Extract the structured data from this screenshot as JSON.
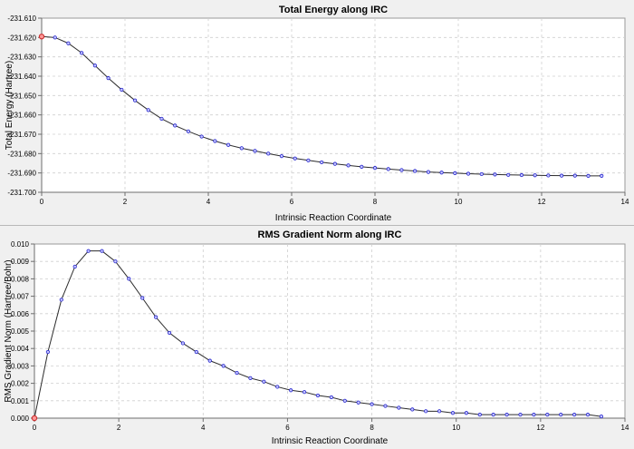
{
  "chart_data": [
    {
      "type": "line",
      "title": "Total Energy along IRC",
      "xlabel": "Intrinsic Reaction Coordinate",
      "ylabel": "Total Energy (Hartree)",
      "xlim": [
        0,
        14
      ],
      "ylim": [
        -231.7,
        -231.61
      ],
      "x_ticks": [
        0,
        2,
        4,
        6,
        8,
        10,
        12,
        14
      ],
      "x_tick_labels": [
        "0",
        "2",
        "4",
        "6",
        "8",
        "10",
        "12",
        "14"
      ],
      "y_ticks": [
        -231.61,
        -231.62,
        -231.63,
        -231.64,
        -231.65,
        -231.66,
        -231.67,
        -231.68,
        -231.69,
        -231.7
      ],
      "y_tick_labels": [
        "-231.610",
        "-231.620",
        "-231.630",
        "-231.640",
        "-231.650",
        "-231.660",
        "-231.670",
        "-231.680",
        "-231.690",
        "-231.700"
      ],
      "grid": true,
      "highlight_index": 0,
      "series": [
        {
          "x": [
            0,
            0.32,
            0.64,
            0.96,
            1.28,
            1.6,
            1.92,
            2.24,
            2.56,
            2.88,
            3.2,
            3.52,
            3.84,
            4.16,
            4.48,
            4.8,
            5.12,
            5.44,
            5.76,
            6.08,
            6.4,
            6.72,
            7.04,
            7.36,
            7.68,
            8.0,
            8.32,
            8.64,
            8.96,
            9.28,
            9.6,
            9.92,
            10.24,
            10.56,
            10.88,
            11.2,
            11.52,
            11.84,
            12.16,
            12.48,
            12.8,
            13.12,
            13.44
          ],
          "y": [
            -231.6195,
            -231.62,
            -231.623,
            -231.628,
            -231.6345,
            -231.641,
            -231.647,
            -231.6525,
            -231.6575,
            -231.662,
            -231.6655,
            -231.6685,
            -231.6712,
            -231.6735,
            -231.6755,
            -231.6772,
            -231.6786,
            -231.68,
            -231.6813,
            -231.6825,
            -231.6835,
            -231.6845,
            -231.6853,
            -231.6861,
            -231.6868,
            -231.6874,
            -231.688,
            -231.6885,
            -231.689,
            -231.6895,
            -231.6898,
            -231.6901,
            -231.6904,
            -231.6906,
            -231.6908,
            -231.691,
            -231.6911,
            -231.6912,
            -231.6913,
            -231.6914,
            -231.6914,
            -231.6915,
            -231.6915
          ]
        }
      ]
    },
    {
      "type": "line",
      "title": "RMS Gradient Norm along IRC",
      "xlabel": "Intrinsic Reaction Coordinate",
      "ylabel": "RMS Gradient Norm (Hartree/Bohr)",
      "xlim": [
        0,
        14
      ],
      "ylim": [
        0,
        0.01
      ],
      "x_ticks": [
        0,
        2,
        4,
        6,
        8,
        10,
        12,
        14
      ],
      "x_tick_labels": [
        "0",
        "2",
        "4",
        "6",
        "8",
        "10",
        "12",
        "14"
      ],
      "y_ticks": [
        0.0,
        0.001,
        0.002,
        0.003,
        0.004,
        0.005,
        0.006,
        0.007,
        0.008,
        0.009,
        0.01
      ],
      "y_tick_labels": [
        "0.000",
        "0.001",
        "0.002",
        "0.003",
        "0.004",
        "0.005",
        "0.006",
        "0.007",
        "0.008",
        "0.009",
        "0.010"
      ],
      "grid": true,
      "highlight_index": 0,
      "series": [
        {
          "x": [
            0,
            0.32,
            0.64,
            0.96,
            1.28,
            1.6,
            1.92,
            2.24,
            2.56,
            2.88,
            3.2,
            3.52,
            3.84,
            4.16,
            4.48,
            4.8,
            5.12,
            5.44,
            5.76,
            6.08,
            6.4,
            6.72,
            7.04,
            7.36,
            7.68,
            8.0,
            8.32,
            8.64,
            8.96,
            9.28,
            9.6,
            9.92,
            10.24,
            10.56,
            10.88,
            11.2,
            11.52,
            11.84,
            12.16,
            12.48,
            12.8,
            13.12,
            13.44
          ],
          "y": [
            0.0,
            0.0038,
            0.0068,
            0.0087,
            0.0096,
            0.0096,
            0.009,
            0.008,
            0.0069,
            0.0058,
            0.0049,
            0.0043,
            0.0038,
            0.0033,
            0.003,
            0.0026,
            0.0023,
            0.0021,
            0.0018,
            0.0016,
            0.0015,
            0.0013,
            0.0012,
            0.001,
            0.0009,
            0.0008,
            0.0007,
            0.0006,
            0.0005,
            0.0004,
            0.0004,
            0.0003,
            0.0003,
            0.0002,
            0.0002,
            0.0002,
            0.0002,
            0.0002,
            0.0002,
            0.0002,
            0.0002,
            0.0002,
            0.0001
          ]
        }
      ]
    }
  ]
}
